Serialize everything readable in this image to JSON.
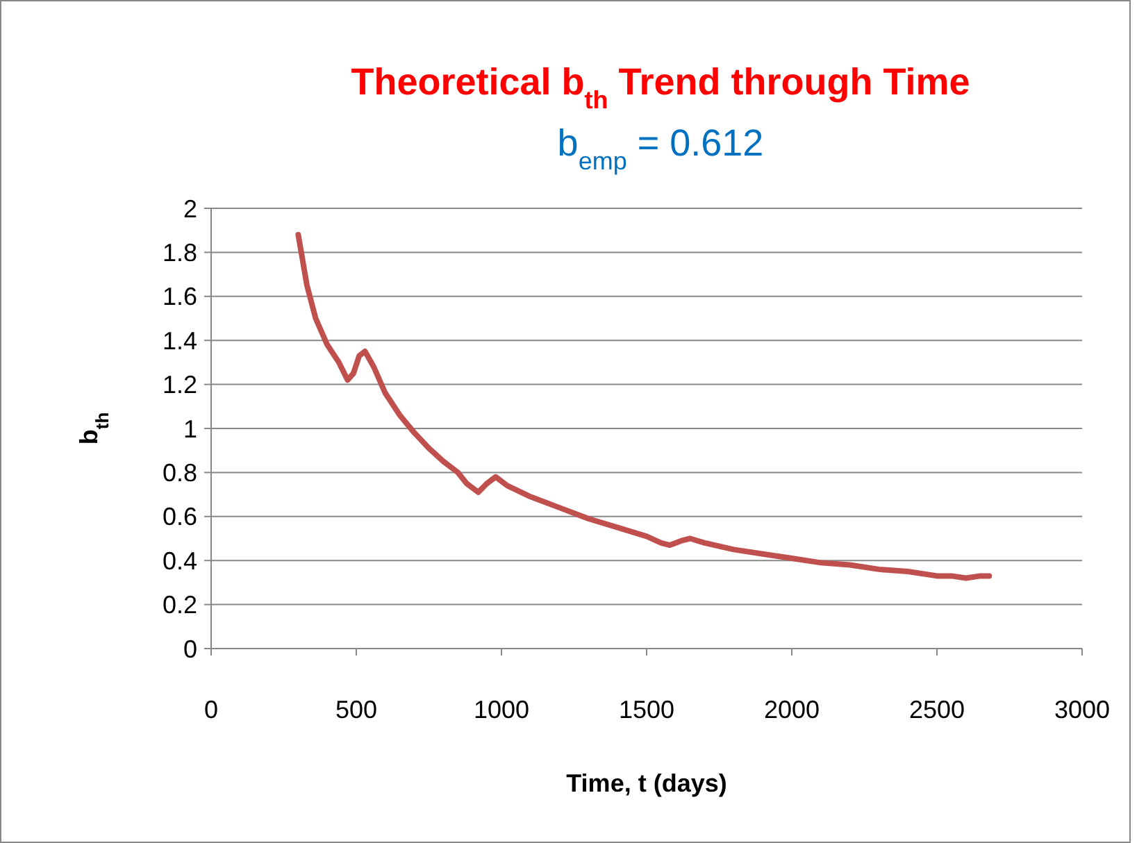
{
  "chart_data": {
    "type": "line",
    "title": "Theoretical b$_{th}$ Trend through Time",
    "subtitle": "b$_{emp}$ = 0.612",
    "xlabel": "Time, t (days)",
    "ylabel": "b$_{th}$",
    "xlim": [
      0,
      3000
    ],
    "xticks": [
      0,
      500,
      1000,
      1500,
      2000,
      2500,
      3000
    ],
    "ylim": [
      0,
      2
    ],
    "yticks": [
      0,
      0.2,
      0.4,
      0.6,
      0.8,
      1,
      1.2,
      1.4,
      1.6,
      1.8,
      2
    ],
    "grid": "y",
    "marker": "none",
    "line_style": "solid",
    "series": [
      {
        "color": "#c0504d",
        "x": [
          300,
          330,
          360,
          400,
          440,
          470,
          490,
          510,
          530,
          560,
          600,
          650,
          700,
          750,
          800,
          850,
          880,
          920,
          950,
          980,
          1020,
          1100,
          1200,
          1300,
          1400,
          1500,
          1550,
          1580,
          1620,
          1650,
          1700,
          1800,
          1900,
          2000,
          2100,
          2200,
          2300,
          2400,
          2500,
          2550,
          2600,
          2650,
          2680
        ],
        "values": [
          1.88,
          1.65,
          1.5,
          1.38,
          1.3,
          1.22,
          1.25,
          1.33,
          1.35,
          1.28,
          1.16,
          1.06,
          0.98,
          0.91,
          0.85,
          0.8,
          0.75,
          0.71,
          0.75,
          0.78,
          0.74,
          0.69,
          0.64,
          0.59,
          0.55,
          0.51,
          0.48,
          0.47,
          0.49,
          0.5,
          0.48,
          0.45,
          0.43,
          0.41,
          0.39,
          0.38,
          0.36,
          0.35,
          0.33,
          0.33,
          0.32,
          0.33,
          0.33
        ]
      }
    ]
  }
}
